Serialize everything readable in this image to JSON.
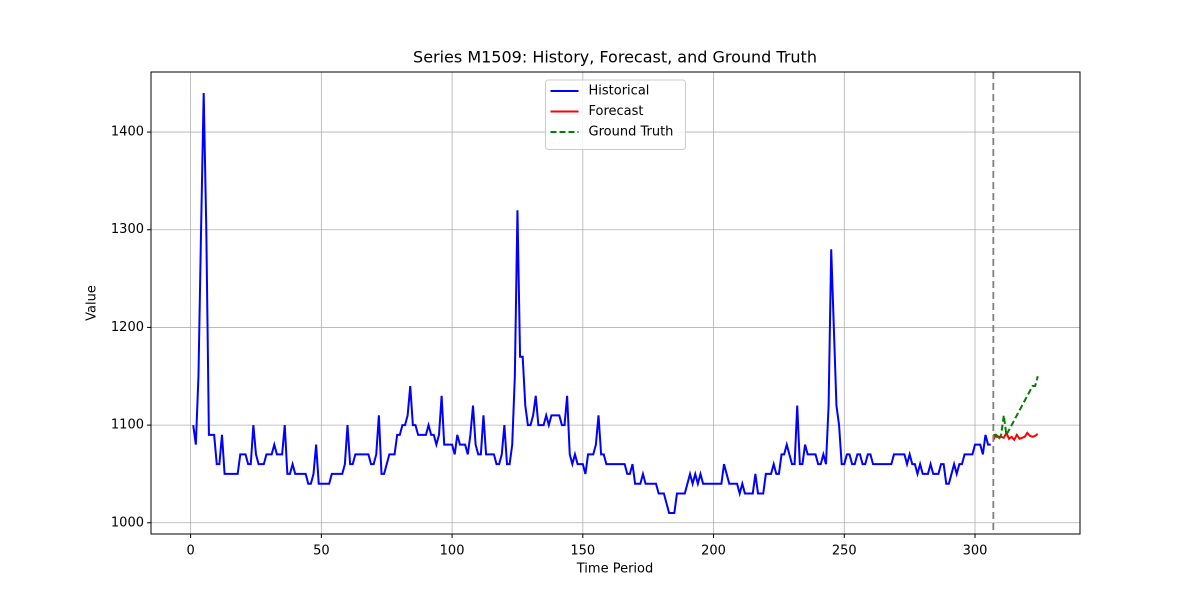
{
  "chart_data": {
    "type": "line",
    "title": "Series M1509: History, Forecast, and Ground Truth",
    "x_label": "Time Period",
    "y_label": "Value",
    "xlim": [
      -15.15,
      340.15
    ],
    "ylim": [
      988.5,
      1461.5
    ],
    "xticks": [
      0,
      50,
      100,
      150,
      200,
      250,
      300
    ],
    "yticks": [
      1000,
      1100,
      1200,
      1300,
      1400
    ],
    "grid": true,
    "legend": "upper center",
    "vline_x": 307,
    "vline_color": "#808080",
    "series": [
      {
        "name": "Historical",
        "color": "#0000ff",
        "style": "solid",
        "x": [
          1,
          2,
          3,
          4,
          5,
          6,
          7,
          8,
          9,
          10,
          11,
          12,
          13,
          14,
          15,
          16,
          17,
          18,
          19,
          20,
          21,
          22,
          23,
          24,
          25,
          26,
          27,
          28,
          29,
          30,
          31,
          32,
          33,
          34,
          35,
          36,
          37,
          38,
          39,
          40,
          41,
          42,
          43,
          44,
          45,
          46,
          47,
          48,
          49,
          50,
          51,
          52,
          53,
          54,
          55,
          56,
          57,
          58,
          59,
          60,
          61,
          62,
          63,
          64,
          65,
          66,
          67,
          68,
          69,
          70,
          71,
          72,
          73,
          74,
          75,
          76,
          77,
          78,
          79,
          80,
          81,
          82,
          83,
          84,
          85,
          86,
          87,
          88,
          89,
          90,
          91,
          92,
          93,
          94,
          95,
          96,
          97,
          98,
          99,
          100,
          101,
          102,
          103,
          104,
          105,
          106,
          107,
          108,
          109,
          110,
          111,
          112,
          113,
          114,
          115,
          116,
          117,
          118,
          119,
          120,
          121,
          122,
          123,
          124,
          125,
          126,
          127,
          128,
          129,
          130,
          131,
          132,
          133,
          134,
          135,
          136,
          137,
          138,
          139,
          140,
          141,
          142,
          143,
          144,
          145,
          146,
          147,
          148,
          149,
          150,
          151,
          152,
          153,
          154,
          155,
          156,
          157,
          158,
          159,
          160,
          161,
          162,
          163,
          164,
          165,
          166,
          167,
          168,
          169,
          170,
          171,
          172,
          173,
          174,
          175,
          176,
          177,
          178,
          179,
          180,
          181,
          182,
          183,
          184,
          185,
          186,
          187,
          188,
          189,
          190,
          191,
          192,
          193,
          194,
          195,
          196,
          197,
          198,
          199,
          200,
          201,
          202,
          203,
          204,
          205,
          206,
          207,
          208,
          209,
          210,
          211,
          212,
          213,
          214,
          215,
          216,
          217,
          218,
          219,
          220,
          221,
          222,
          223,
          224,
          225,
          226,
          227,
          228,
          229,
          230,
          231,
          232,
          233,
          234,
          235,
          236,
          237,
          238,
          239,
          240,
          241,
          242,
          243,
          244,
          245,
          246,
          247,
          248,
          249,
          250,
          251,
          252,
          253,
          254,
          255,
          256,
          257,
          258,
          259,
          260,
          261,
          262,
          263,
          264,
          265,
          266,
          267,
          268,
          269,
          270,
          271,
          272,
          273,
          274,
          275,
          276,
          277,
          278,
          279,
          280,
          281,
          282,
          283,
          284,
          285,
          286,
          287,
          288,
          289,
          290,
          291,
          292,
          293,
          294,
          295,
          296,
          297,
          298,
          299,
          300,
          301,
          302,
          303,
          304,
          305,
          306
        ],
        "values": [
          1100,
          1080,
          1150,
          1300,
          1440,
          1300,
          1090,
          1090,
          1090,
          1060,
          1060,
          1090,
          1050,
          1050,
          1050,
          1050,
          1050,
          1050,
          1070,
          1070,
          1070,
          1060,
          1060,
          1100,
          1070,
          1060,
          1060,
          1060,
          1070,
          1070,
          1070,
          1080,
          1070,
          1070,
          1070,
          1100,
          1050,
          1050,
          1060,
          1050,
          1050,
          1050,
          1050,
          1050,
          1040,
          1040,
          1050,
          1080,
          1040,
          1040,
          1040,
          1040,
          1040,
          1050,
          1050,
          1050,
          1050,
          1050,
          1060,
          1100,
          1060,
          1060,
          1070,
          1070,
          1070,
          1070,
          1070,
          1070,
          1060,
          1060,
          1070,
          1110,
          1050,
          1050,
          1060,
          1070,
          1070,
          1070,
          1090,
          1090,
          1100,
          1100,
          1110,
          1140,
          1100,
          1100,
          1090,
          1090,
          1090,
          1090,
          1100,
          1090,
          1090,
          1080,
          1090,
          1130,
          1080,
          1080,
          1080,
          1080,
          1070,
          1090,
          1080,
          1080,
          1080,
          1070,
          1090,
          1120,
          1080,
          1070,
          1070,
          1110,
          1070,
          1070,
          1070,
          1070,
          1060,
          1060,
          1070,
          1100,
          1060,
          1060,
          1080,
          1150,
          1320,
          1170,
          1170,
          1120,
          1100,
          1100,
          1110,
          1130,
          1100,
          1100,
          1100,
          1110,
          1100,
          1110,
          1110,
          1110,
          1110,
          1100,
          1100,
          1130,
          1070,
          1060,
          1070,
          1060,
          1060,
          1060,
          1050,
          1070,
          1070,
          1070,
          1080,
          1110,
          1070,
          1070,
          1060,
          1060,
          1060,
          1060,
          1060,
          1060,
          1060,
          1060,
          1050,
          1050,
          1060,
          1040,
          1040,
          1040,
          1050,
          1040,
          1040,
          1040,
          1040,
          1040,
          1030,
          1030,
          1030,
          1020,
          1010,
          1010,
          1010,
          1030,
          1030,
          1030,
          1030,
          1040,
          1050,
          1040,
          1050,
          1040,
          1050,
          1040,
          1040,
          1040,
          1040,
          1040,
          1040,
          1040,
          1040,
          1060,
          1050,
          1040,
          1040,
          1040,
          1040,
          1030,
          1040,
          1030,
          1030,
          1030,
          1030,
          1050,
          1030,
          1030,
          1030,
          1050,
          1050,
          1050,
          1060,
          1050,
          1050,
          1070,
          1070,
          1080,
          1070,
          1060,
          1060,
          1120,
          1060,
          1060,
          1080,
          1070,
          1070,
          1070,
          1070,
          1060,
          1060,
          1070,
          1060,
          1120,
          1280,
          1200,
          1120,
          1100,
          1060,
          1060,
          1070,
          1070,
          1060,
          1060,
          1070,
          1070,
          1060,
          1060,
          1070,
          1070,
          1060,
          1060,
          1060,
          1060,
          1060,
          1060,
          1060,
          1060,
          1070,
          1070,
          1070,
          1070,
          1070,
          1060,
          1070,
          1060,
          1060,
          1050,
          1060,
          1050,
          1050,
          1050,
          1060,
          1050,
          1050,
          1050,
          1060,
          1060,
          1040,
          1040,
          1050,
          1060,
          1050,
          1060,
          1060,
          1070,
          1070,
          1070,
          1070,
          1080,
          1080,
          1080,
          1070,
          1090,
          1080,
          1080
        ]
      },
      {
        "name": "Forecast",
        "color": "#ff0000",
        "style": "solid",
        "x": [
          307,
          308,
          309,
          310,
          311,
          312,
          313,
          314,
          315,
          316,
          317,
          318,
          319,
          320,
          321,
          322,
          323,
          324
        ],
        "values": [
          1085,
          1090,
          1088,
          1088,
          1087,
          1092,
          1086,
          1088,
          1085,
          1090,
          1086,
          1087,
          1088,
          1092,
          1089,
          1088,
          1089,
          1091
        ]
      },
      {
        "name": "Ground Truth",
        "color": "#008000",
        "style": "dashed",
        "x": [
          307,
          308,
          309,
          310,
          311,
          312,
          313,
          314,
          315,
          316,
          317,
          318,
          319,
          320,
          321,
          322,
          323,
          324
        ],
        "values": [
          1090,
          1090,
          1085,
          1090,
          1110,
          1090,
          1095,
          1100,
          1105,
          1110,
          1115,
          1120,
          1125,
          1130,
          1135,
          1140,
          1140,
          1150
        ]
      }
    ]
  }
}
